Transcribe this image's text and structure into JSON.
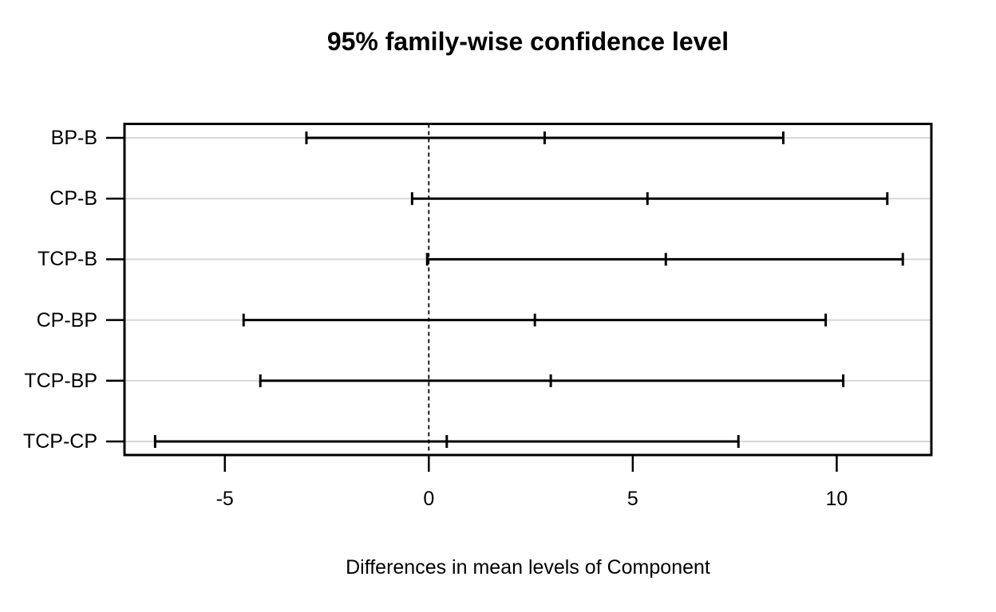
{
  "chart_data": {
    "type": "errorbar",
    "orientation": "horizontal",
    "title": "95% family-wise confidence level",
    "xlabel": "Differences in mean levels of Component",
    "x_ticks": [
      -5,
      0,
      5,
      10
    ],
    "x_tick_labels": [
      "-5",
      "0",
      "5",
      "10"
    ],
    "xlim": [
      -7.46,
      12.32
    ],
    "zero_line": {
      "x": 0,
      "style": "dashed"
    },
    "grid": {
      "horizontal_row_lines": true
    },
    "legend": "none",
    "categories": [
      "BP-B",
      "CP-B",
      "TCP-B",
      "CP-BP",
      "TCP-BP",
      "TCP-CP"
    ],
    "comparisons": [
      {
        "label": "BP-B",
        "diff": 2.84,
        "lwr": -3.0,
        "upr": 8.69
      },
      {
        "label": "CP-B",
        "diff": 5.36,
        "lwr": -0.41,
        "upr": 11.24
      },
      {
        "label": "TCP-B",
        "diff": 5.81,
        "lwr": -0.04,
        "upr": 11.62
      },
      {
        "label": "CP-BP",
        "diff": 2.6,
        "lwr": -4.54,
        "upr": 9.73
      },
      {
        "label": "TCP-BP",
        "diff": 2.99,
        "lwr": -4.13,
        "upr": 10.16
      },
      {
        "label": "TCP-CP",
        "diff": 0.44,
        "lwr": -6.71,
        "upr": 7.59
      }
    ],
    "colors": {
      "line": "#000000",
      "grid_line": "#d8d8d8",
      "background": "#ffffff",
      "text": "#000000"
    }
  }
}
